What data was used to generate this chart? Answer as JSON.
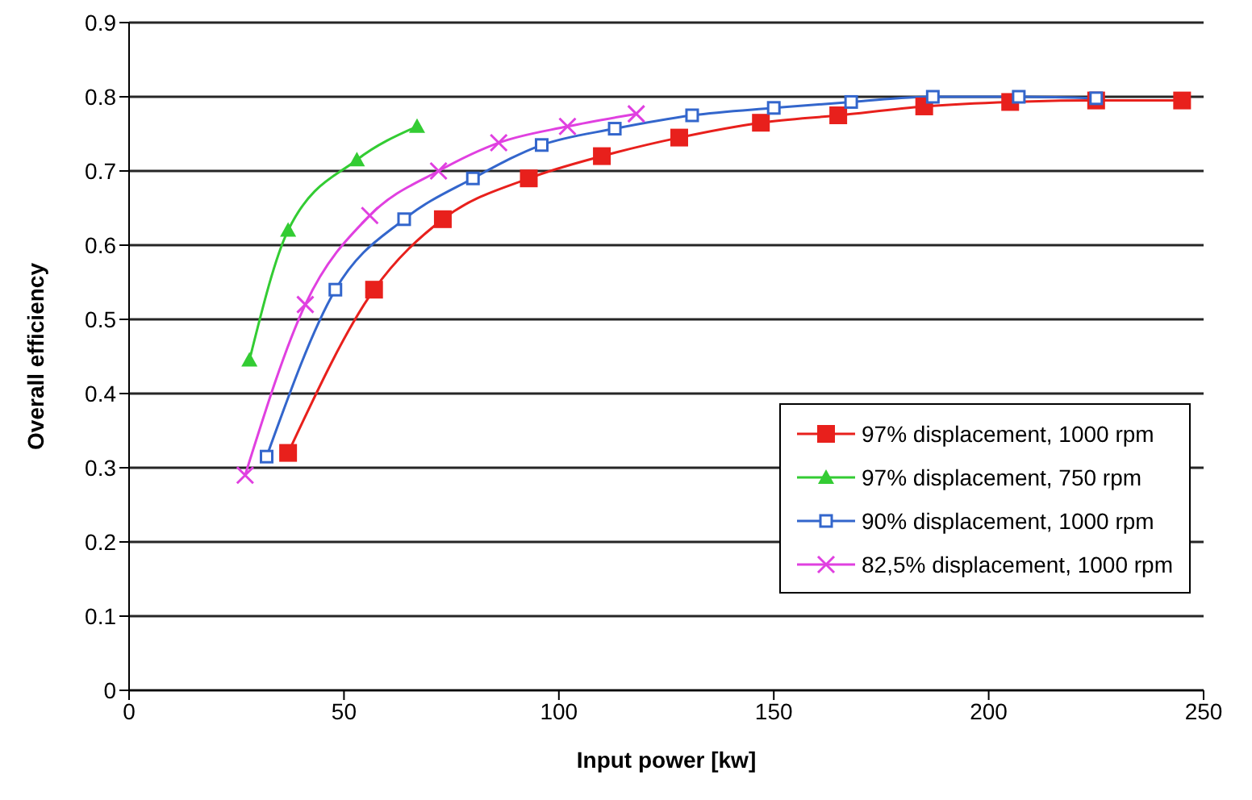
{
  "chart_data": {
    "type": "line",
    "xlabel": "Input power [kw]",
    "ylabel": "Overall efficiency",
    "xlim": [
      0,
      250
    ],
    "xticks": [
      0,
      50,
      100,
      150,
      200,
      250
    ],
    "ylim": [
      0,
      0.9
    ],
    "yticks": [
      0,
      0.1,
      0.2,
      0.3,
      0.4,
      0.5,
      0.6,
      0.7,
      0.8,
      0.9
    ],
    "grid": "y",
    "legend": "bottom right",
    "series": [
      {
        "name": "97% displacement, 1000 rpm",
        "color": "#e8201c",
        "marker": "square",
        "x": [
          37,
          57,
          73,
          93,
          110,
          128,
          147,
          165,
          185,
          205,
          225,
          245
        ],
        "values": [
          0.32,
          0.54,
          0.635,
          0.69,
          0.72,
          0.745,
          0.765,
          0.775,
          0.787,
          0.793,
          0.795,
          0.795
        ]
      },
      {
        "name": "97% displacement, 750 rpm",
        "color": "#33cc33",
        "marker": "triangle",
        "x": [
          28,
          37,
          53,
          67
        ],
        "values": [
          0.445,
          0.62,
          0.715,
          0.76
        ]
      },
      {
        "name": "90% displacement, 1000 rpm",
        "color": "#3366cc",
        "marker": "square_open",
        "x": [
          32,
          48,
          64,
          80,
          96,
          113,
          131,
          150,
          168,
          187,
          207,
          225
        ],
        "values": [
          0.315,
          0.54,
          0.635,
          0.69,
          0.735,
          0.757,
          0.775,
          0.785,
          0.793,
          0.8,
          0.8,
          0.798
        ]
      },
      {
        "name": "82,5% displacement, 1000 rpm",
        "color": "#e040e0",
        "marker": "cross",
        "x": [
          27,
          41,
          56,
          72,
          86,
          102,
          118
        ],
        "values": [
          0.29,
          0.52,
          0.64,
          0.7,
          0.738,
          0.76,
          0.777
        ]
      }
    ]
  }
}
